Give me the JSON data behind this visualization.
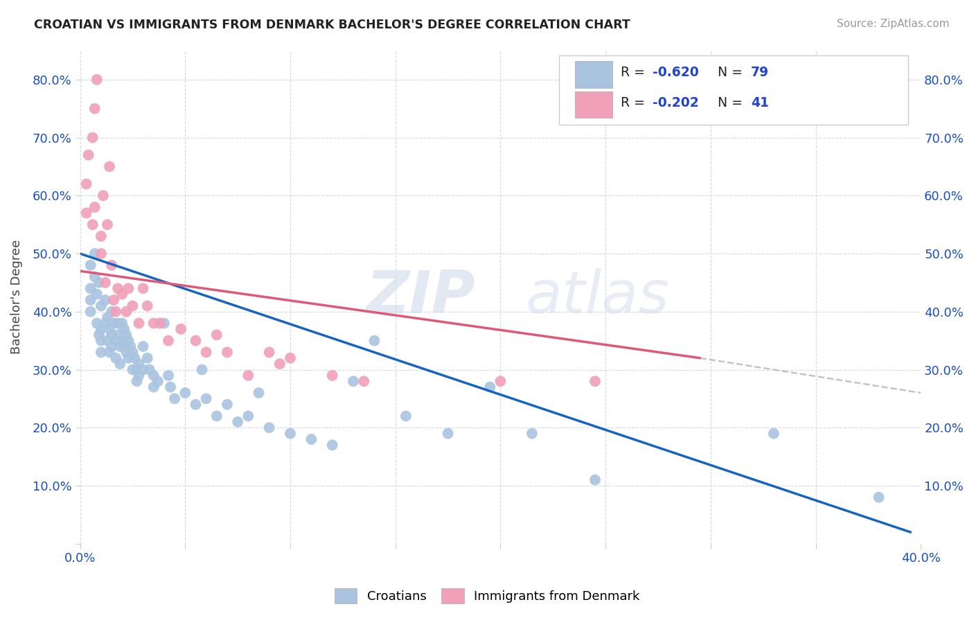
{
  "title": "CROATIAN VS IMMIGRANTS FROM DENMARK BACHELOR'S DEGREE CORRELATION CHART",
  "source_text": "Source: ZipAtlas.com",
  "ylabel": "Bachelor's Degree",
  "xlim": [
    0.0,
    0.4
  ],
  "ylim": [
    0.0,
    0.85
  ],
  "xtick_positions": [
    0.0,
    0.05,
    0.1,
    0.15,
    0.2,
    0.25,
    0.3,
    0.35,
    0.4
  ],
  "xtick_labels": [
    "0.0%",
    "",
    "",
    "",
    "",
    "",
    "",
    "",
    "40.0%"
  ],
  "ytick_positions": [
    0.0,
    0.1,
    0.2,
    0.3,
    0.4,
    0.5,
    0.6,
    0.7,
    0.8
  ],
  "ytick_labels": [
    "",
    "10.0%",
    "20.0%",
    "30.0%",
    "40.0%",
    "50.0%",
    "60.0%",
    "70.0%",
    "80.0%"
  ],
  "blue_R": -0.62,
  "blue_N": 79,
  "pink_R": -0.202,
  "pink_N": 41,
  "blue_color": "#aac4e0",
  "pink_color": "#f0a0b8",
  "blue_line_color": "#1565c0",
  "pink_line_color": "#e05878",
  "dash_line_color": "#b8b8c8",
  "legend_R_color": "#2244cc",
  "background_color": "#ffffff",
  "grid_color": "#d0dae8",
  "watermark_zip": "ZIP",
  "watermark_atlas": "atlas",
  "blue_line_x0": 0.0,
  "blue_line_x1": 0.395,
  "blue_line_y0": 0.5,
  "blue_line_y1": 0.02,
  "pink_line_x0": 0.0,
  "pink_line_x1": 0.295,
  "pink_line_y0": 0.47,
  "pink_line_y1": 0.32,
  "dash_line_x0": 0.295,
  "dash_line_x1": 0.4,
  "dash_line_y0": 0.32,
  "dash_line_y1": 0.26,
  "blue_scatter_x": [
    0.005,
    0.005,
    0.005,
    0.005,
    0.007,
    0.007,
    0.008,
    0.008,
    0.009,
    0.009,
    0.01,
    0.01,
    0.01,
    0.01,
    0.012,
    0.012,
    0.013,
    0.013,
    0.014,
    0.014,
    0.015,
    0.015,
    0.015,
    0.016,
    0.017,
    0.017,
    0.018,
    0.018,
    0.019,
    0.019,
    0.02,
    0.02,
    0.021,
    0.021,
    0.022,
    0.022,
    0.023,
    0.023,
    0.024,
    0.025,
    0.025,
    0.026,
    0.027,
    0.027,
    0.028,
    0.028,
    0.03,
    0.03,
    0.032,
    0.033,
    0.035,
    0.035,
    0.037,
    0.04,
    0.042,
    0.043,
    0.045,
    0.05,
    0.055,
    0.058,
    0.06,
    0.065,
    0.07,
    0.075,
    0.08,
    0.085,
    0.09,
    0.1,
    0.11,
    0.12,
    0.13,
    0.14,
    0.155,
    0.175,
    0.195,
    0.215,
    0.245,
    0.33,
    0.38
  ],
  "blue_scatter_y": [
    0.48,
    0.44,
    0.42,
    0.4,
    0.46,
    0.5,
    0.43,
    0.38,
    0.36,
    0.45,
    0.41,
    0.37,
    0.35,
    0.33,
    0.38,
    0.42,
    0.39,
    0.35,
    0.37,
    0.33,
    0.4,
    0.36,
    0.34,
    0.38,
    0.35,
    0.32,
    0.38,
    0.36,
    0.34,
    0.31,
    0.38,
    0.35,
    0.37,
    0.34,
    0.36,
    0.33,
    0.35,
    0.32,
    0.34,
    0.33,
    0.3,
    0.32,
    0.3,
    0.28,
    0.31,
    0.29,
    0.34,
    0.3,
    0.32,
    0.3,
    0.29,
    0.27,
    0.28,
    0.38,
    0.29,
    0.27,
    0.25,
    0.26,
    0.24,
    0.3,
    0.25,
    0.22,
    0.24,
    0.21,
    0.22,
    0.26,
    0.2,
    0.19,
    0.18,
    0.17,
    0.28,
    0.35,
    0.22,
    0.19,
    0.27,
    0.19,
    0.11,
    0.19,
    0.08
  ],
  "pink_scatter_x": [
    0.003,
    0.003,
    0.004,
    0.006,
    0.006,
    0.007,
    0.007,
    0.008,
    0.01,
    0.01,
    0.011,
    0.012,
    0.013,
    0.014,
    0.015,
    0.016,
    0.017,
    0.018,
    0.02,
    0.022,
    0.023,
    0.025,
    0.028,
    0.03,
    0.032,
    0.035,
    0.038,
    0.042,
    0.048,
    0.055,
    0.06,
    0.065,
    0.07,
    0.08,
    0.09,
    0.095,
    0.1,
    0.12,
    0.135,
    0.2,
    0.245
  ],
  "pink_scatter_y": [
    0.57,
    0.62,
    0.67,
    0.55,
    0.7,
    0.58,
    0.75,
    0.8,
    0.5,
    0.53,
    0.6,
    0.45,
    0.55,
    0.65,
    0.48,
    0.42,
    0.4,
    0.44,
    0.43,
    0.4,
    0.44,
    0.41,
    0.38,
    0.44,
    0.41,
    0.38,
    0.38,
    0.35,
    0.37,
    0.35,
    0.33,
    0.36,
    0.33,
    0.29,
    0.33,
    0.31,
    0.32,
    0.29,
    0.28,
    0.28,
    0.28
  ]
}
